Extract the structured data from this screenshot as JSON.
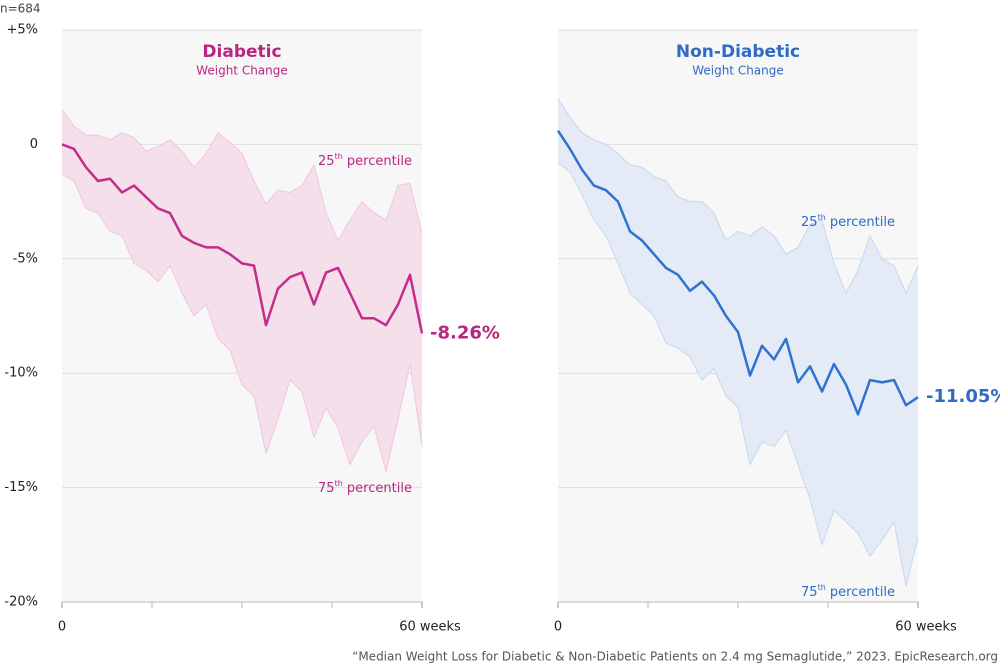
{
  "sample_note": "n=684",
  "source": "“Median Weight Loss for Diabetic & Non-Diabetic Patients on 2.4 mg Semaglutide,” 2023. EpicResearch.org",
  "chart_data": [
    {
      "type": "line",
      "title": "Diabetic",
      "subtitle": "Weight Change",
      "color": "#b8267f",
      "band_color": "#f4dfeb",
      "grid": true,
      "x": [
        0,
        2,
        4,
        6,
        8,
        10,
        12,
        14,
        16,
        18,
        20,
        22,
        24,
        26,
        28,
        30,
        32,
        34,
        36,
        38,
        40,
        42,
        44,
        46,
        48,
        50,
        52,
        54,
        56,
        58,
        60
      ],
      "xlim": [
        0,
        60
      ],
      "xticks": [
        0,
        {
          "value": 60,
          "label": "60 weeks"
        }
      ],
      "xminorticks": [
        15,
        30,
        45
      ],
      "ylim": [
        -20,
        5
      ],
      "yticks": [
        {
          "value": 5,
          "label": "+5%"
        },
        0,
        {
          "value": -5,
          "label": "-5%"
        },
        {
          "value": -10,
          "label": "-10%"
        },
        {
          "value": -15,
          "label": "-15%"
        },
        {
          "value": -20,
          "label": "-20%"
        }
      ],
      "series": [
        {
          "name": "25th percentile",
          "color": "#efc6de",
          "values": [
            1.5,
            0.8,
            0.4,
            0.4,
            0.2,
            0.5,
            0.3,
            -0.3,
            -0.1,
            0.2,
            -0.3,
            -1.0,
            -0.4,
            0.5,
            0.1,
            -0.4,
            -1.6,
            -2.6,
            -2.0,
            -2.1,
            -1.8,
            -0.9,
            -3.0,
            -4.2,
            -3.3,
            -2.5,
            -3.0,
            -3.3,
            -1.8,
            -1.7,
            -3.9
          ]
        },
        {
          "name": "75th percentile",
          "color": "#efc6de",
          "values": [
            -1.3,
            -1.6,
            -2.8,
            -3.0,
            -3.8,
            -4.0,
            -5.2,
            -5.5,
            -6.0,
            -5.3,
            -6.5,
            -7.5,
            -7.0,
            -8.5,
            -9.0,
            -10.5,
            -11.0,
            -13.5,
            -12.0,
            -10.3,
            -10.8,
            -12.8,
            -11.5,
            -12.4,
            -14.0,
            -13.0,
            -12.3,
            -14.3,
            -12.0,
            -9.6,
            -13.2
          ]
        },
        {
          "color": "#c42d8c",
          "values": [
            0,
            -0.2,
            -1.0,
            -1.6,
            -1.5,
            -2.1,
            -1.8,
            -2.3,
            -2.8,
            -3.0,
            -4.0,
            -4.3,
            -4.5,
            -4.5,
            -4.8,
            -5.2,
            -5.3,
            -7.9,
            -6.3,
            -5.8,
            -5.6,
            -7.0,
            -5.6,
            -5.4,
            -6.5,
            -7.6,
            -7.6,
            -7.9,
            -7.0,
            -5.7,
            -8.26
          ],
          "value_labels": [
            null,
            null,
            null,
            null,
            null,
            null,
            null,
            null,
            null,
            null,
            null,
            null,
            null,
            null,
            null,
            null,
            null,
            null,
            null,
            null,
            null,
            null,
            null,
            null,
            null,
            null,
            null,
            null,
            null,
            null,
            "-8.26%"
          ]
        }
      ]
    },
    {
      "type": "line",
      "title": "Non-Diabetic",
      "subtitle": "Weight Change",
      "color": "#2f6bc4",
      "band_color": "#e4ebf7",
      "grid": true,
      "x": [
        0,
        2,
        4,
        6,
        8,
        10,
        12,
        14,
        16,
        18,
        20,
        22,
        24,
        26,
        28,
        30,
        32,
        34,
        36,
        38,
        40,
        42,
        44,
        46,
        48,
        50,
        52,
        54,
        56,
        58,
        60
      ],
      "xlim": [
        0,
        60
      ],
      "xticks": [
        0,
        {
          "value": 60,
          "label": "60 weeks"
        }
      ],
      "xminorticks": [
        15,
        30,
        45
      ],
      "ylim": [
        -20,
        5
      ],
      "series": [
        {
          "name": "25th percentile",
          "color": "#c6d7f1",
          "values": [
            2.0,
            1.2,
            0.5,
            0.2,
            0.0,
            -0.4,
            -0.9,
            -1.0,
            -1.4,
            -1.6,
            -2.3,
            -2.5,
            -2.5,
            -3.0,
            -4.2,
            -3.8,
            -4.0,
            -3.6,
            -4.0,
            -4.8,
            -4.5,
            -3.5,
            -3.3,
            -5.2,
            -6.5,
            -5.5,
            -4.0,
            -5.0,
            -5.3,
            -6.5,
            -5.3
          ]
        },
        {
          "name": "75th percentile",
          "color": "#c6d7f1",
          "values": [
            -0.8,
            -1.2,
            -2.2,
            -3.3,
            -4.0,
            -5.2,
            -6.5,
            -7.0,
            -7.5,
            -8.7,
            -8.9,
            -9.3,
            -10.3,
            -9.8,
            -11.0,
            -11.5,
            -14.0,
            -13.0,
            -13.2,
            -12.5,
            -14.0,
            -15.5,
            -17.5,
            -16.0,
            -16.5,
            -17.0,
            -18.0,
            -17.3,
            -16.5,
            -19.3,
            -17.2
          ]
        },
        {
          "color": "#2f72d0",
          "values": [
            0.6,
            -0.2,
            -1.1,
            -1.8,
            -2.0,
            -2.5,
            -3.8,
            -4.2,
            -4.8,
            -5.4,
            -5.7,
            -6.4,
            -6.0,
            -6.6,
            -7.5,
            -8.2,
            -10.1,
            -8.8,
            -9.4,
            -8.5,
            -10.4,
            -9.7,
            -10.8,
            -9.6,
            -10.5,
            -11.8,
            -10.3,
            -10.4,
            -10.3,
            -11.4,
            -11.05
          ],
          "value_labels": [
            null,
            null,
            null,
            null,
            null,
            null,
            null,
            null,
            null,
            null,
            null,
            null,
            null,
            null,
            null,
            null,
            null,
            null,
            null,
            null,
            null,
            null,
            null,
            null,
            null,
            null,
            null,
            null,
            null,
            null,
            "-11.05%"
          ]
        }
      ]
    }
  ]
}
